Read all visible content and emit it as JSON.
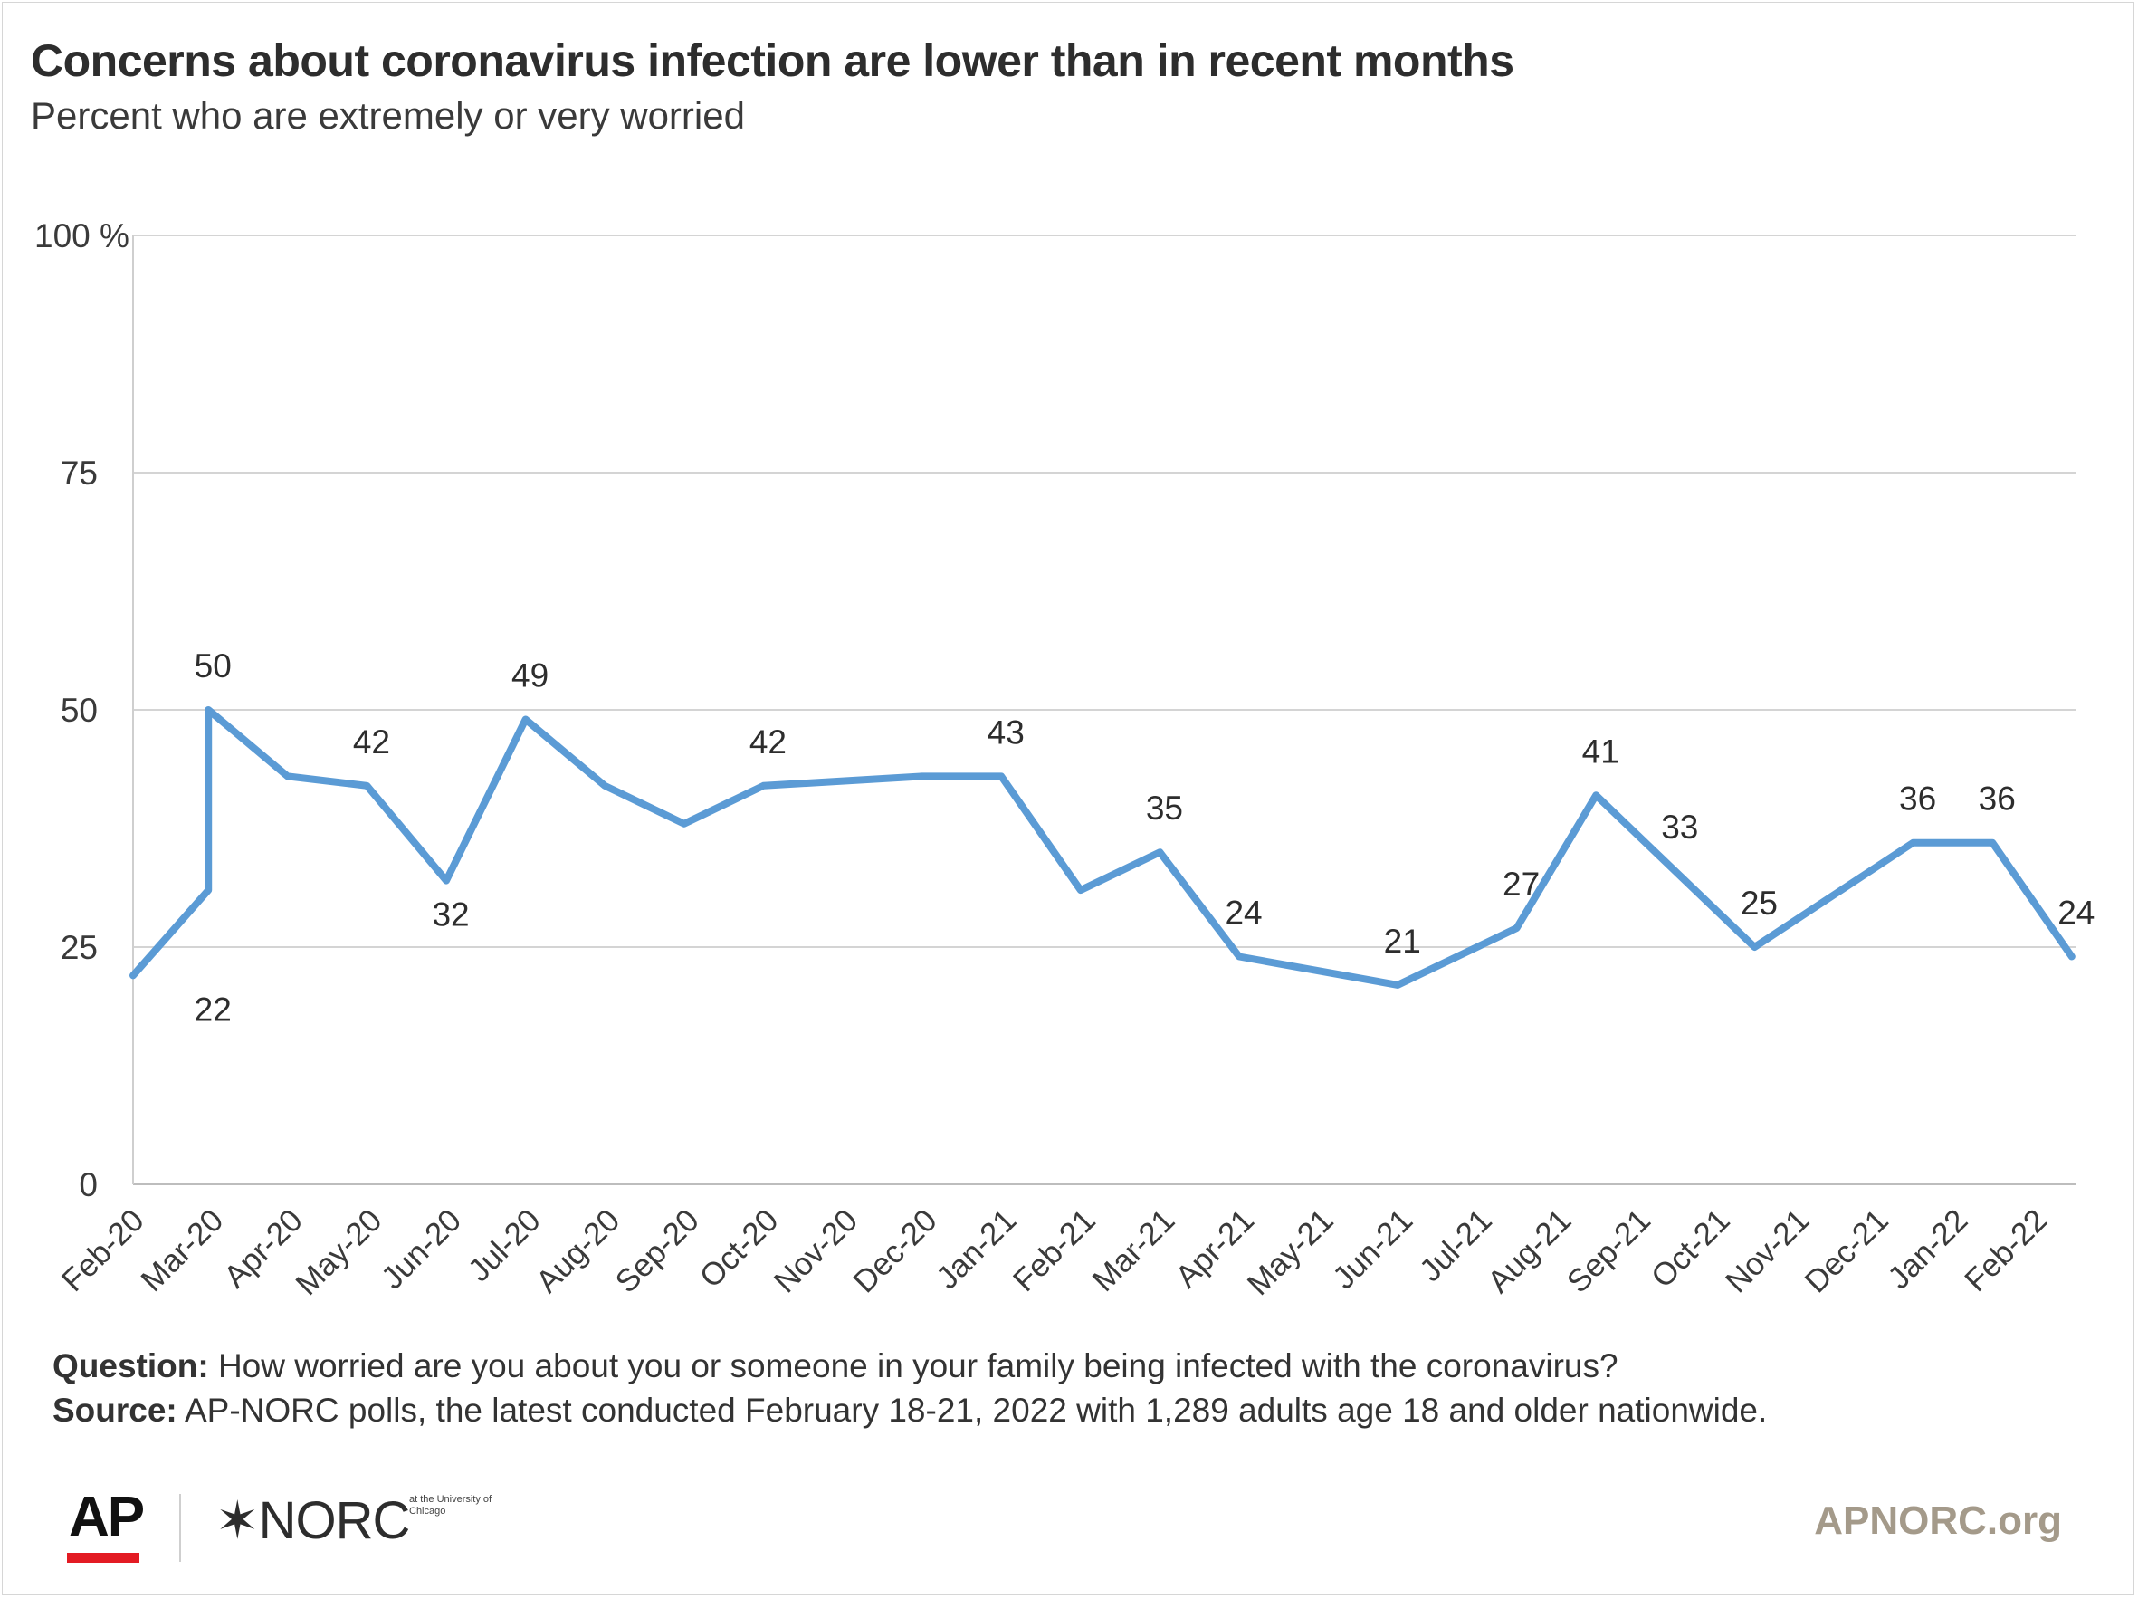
{
  "chart_data": {
    "type": "line",
    "title": "Concerns about coronavirus infection are lower than in recent months",
    "subtitle": "Percent who are extremely or very worried",
    "ylim": [
      0,
      100
    ],
    "yticks": [
      {
        "value": 100,
        "label": "100 %"
      },
      {
        "value": 75,
        "label": "75"
      },
      {
        "value": 50,
        "label": "50"
      },
      {
        "value": 25,
        "label": "25"
      },
      {
        "value": 0,
        "label": "0"
      }
    ],
    "categories": [
      "Feb-20",
      "Mar-20",
      "Apr-20",
      "May-20",
      "Jun-20",
      "Jul-20",
      "Aug-20",
      "Sep-20",
      "Oct-20",
      "Nov-20",
      "Dec-20",
      "Jan-21",
      "Feb-21",
      "Mar-21",
      "Apr-21",
      "May-21",
      "Jun-21",
      "Jul-21",
      "Aug-21",
      "Sep-21",
      "Oct-21",
      "Nov-21",
      "Dec-21",
      "Jan-22",
      "Feb-22"
    ],
    "series": [
      {
        "color": "#5b9bd5",
        "points": [
          {
            "x": 0,
            "y": 22
          },
          {
            "x": 0.95,
            "y": 31
          },
          {
            "x": 0.95,
            "y": 50
          },
          {
            "x": 1.95,
            "y": 43
          },
          {
            "x": 2.95,
            "y": 42
          },
          {
            "x": 3.95,
            "y": 32
          },
          {
            "x": 4.95,
            "y": 49
          },
          {
            "x": 5.95,
            "y": 42
          },
          {
            "x": 6.95,
            "y": 38
          },
          {
            "x": 7.95,
            "y": 42
          },
          {
            "x": 9.95,
            "y": 43
          },
          {
            "x": 10.95,
            "y": 43
          },
          {
            "x": 11.95,
            "y": 31
          },
          {
            "x": 12.95,
            "y": 35
          },
          {
            "x": 13.95,
            "y": 24
          },
          {
            "x": 15.95,
            "y": 21
          },
          {
            "x": 17.45,
            "y": 27
          },
          {
            "x": 18.45,
            "y": 41
          },
          {
            "x": 20.45,
            "y": 25
          },
          {
            "x": 22.45,
            "y": 36
          },
          {
            "x": 23.45,
            "y": 36
          },
          {
            "x": 24.45,
            "y": 24
          }
        ]
      }
    ],
    "data_labels": [
      {
        "x": 0.95,
        "y": 50,
        "text": "50",
        "pos": "above"
      },
      {
        "x": 0.95,
        "y": 22,
        "text": "22",
        "pos": "below"
      },
      {
        "x": 2.95,
        "y": 42,
        "text": "42",
        "pos": "above"
      },
      {
        "x": 3.95,
        "y": 32,
        "text": "32",
        "pos": "below"
      },
      {
        "x": 4.95,
        "y": 49,
        "text": "49",
        "pos": "above"
      },
      {
        "x": 7.95,
        "y": 42,
        "text": "42",
        "pos": "above"
      },
      {
        "x": 10.95,
        "y": 43,
        "text": "43",
        "pos": "above"
      },
      {
        "x": 12.95,
        "y": 35,
        "text": "35",
        "pos": "above"
      },
      {
        "x": 13.95,
        "y": 24,
        "text": "24",
        "pos": "above"
      },
      {
        "x": 15.95,
        "y": 21,
        "text": "21",
        "pos": "above"
      },
      {
        "x": 17.45,
        "y": 27,
        "text": "27",
        "pos": "above"
      },
      {
        "x": 18.45,
        "y": 41,
        "text": "41",
        "pos": "above"
      },
      {
        "x": 19.45,
        "y": 33,
        "text": "33",
        "pos": "above"
      },
      {
        "x": 20.45,
        "y": 25,
        "text": "25",
        "pos": "above"
      },
      {
        "x": 22.45,
        "y": 36,
        "text": "36",
        "pos": "above"
      },
      {
        "x": 23.45,
        "y": 36,
        "text": "36",
        "pos": "above"
      },
      {
        "x": 24.45,
        "y": 24,
        "text": "24",
        "pos": "above"
      }
    ],
    "grid": true
  },
  "notes": {
    "question_label": "Question:",
    "question_text": " How worried are you about you or someone in your family being infected with the coronavirus?",
    "source_label": "Source:",
    "source_text": "  AP-NORC polls, the latest conducted February 18-21, 2022 with 1,289 adults age 18 and older nationwide."
  },
  "branding": {
    "ap_logo": "AP",
    "norc_logo": "✶NORC",
    "norc_small": "at the University of Chicago",
    "site": "APNORC.org",
    "accent_red": "#e31b23"
  }
}
